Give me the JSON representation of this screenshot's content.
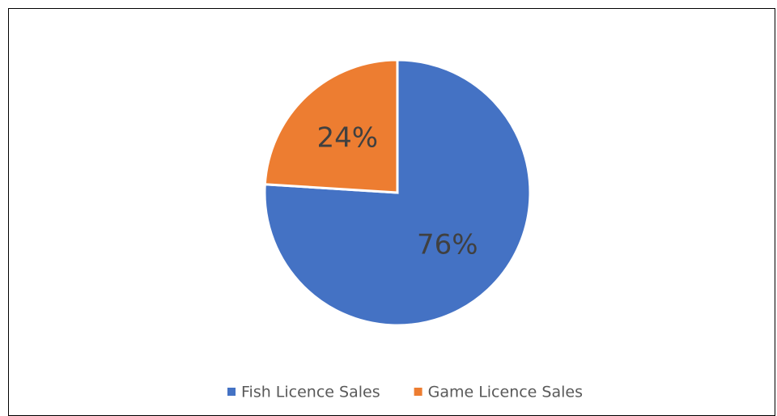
{
  "chart_data": {
    "type": "pie",
    "categories": [
      "Fish Licence Sales",
      "Game Licence Sales"
    ],
    "values": [
      76,
      24
    ],
    "value_labels": [
      "76%",
      "24%"
    ],
    "colors": [
      "#4472c4",
      "#ed7d31"
    ],
    "legend": "bottom"
  }
}
